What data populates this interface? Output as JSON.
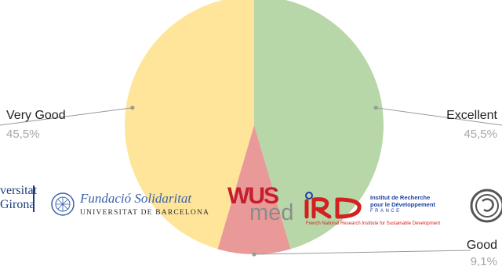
{
  "chart_data": {
    "type": "pie",
    "title": "",
    "slices": [
      {
        "label": "Excellent",
        "value_label": "45,5%",
        "value": 45.5,
        "color": "#b7d7a8"
      },
      {
        "label": "Good",
        "value_label": "9,1%",
        "value": 9.1,
        "color": "#ea9999"
      },
      {
        "label": "Very Good",
        "value_label": "45,5%",
        "value": 45.5,
        "color": "#ffe599"
      }
    ],
    "leader_color": "#999999"
  },
  "logos": {
    "udg": {
      "line1": "versitat",
      "line2": "Girona"
    },
    "fs": {
      "line1": "Fundació Solidaritat",
      "line2": "UNIVERSITAT DE BARCELONA"
    },
    "wus": {
      "line1": "WUS",
      "line2": "med"
    },
    "ird": {
      "line1": "Institut de Recherche",
      "line2": "pour le Développement",
      "line3": "FRANCE",
      "line4": "French National Research Institute for Sustainable Development"
    }
  }
}
